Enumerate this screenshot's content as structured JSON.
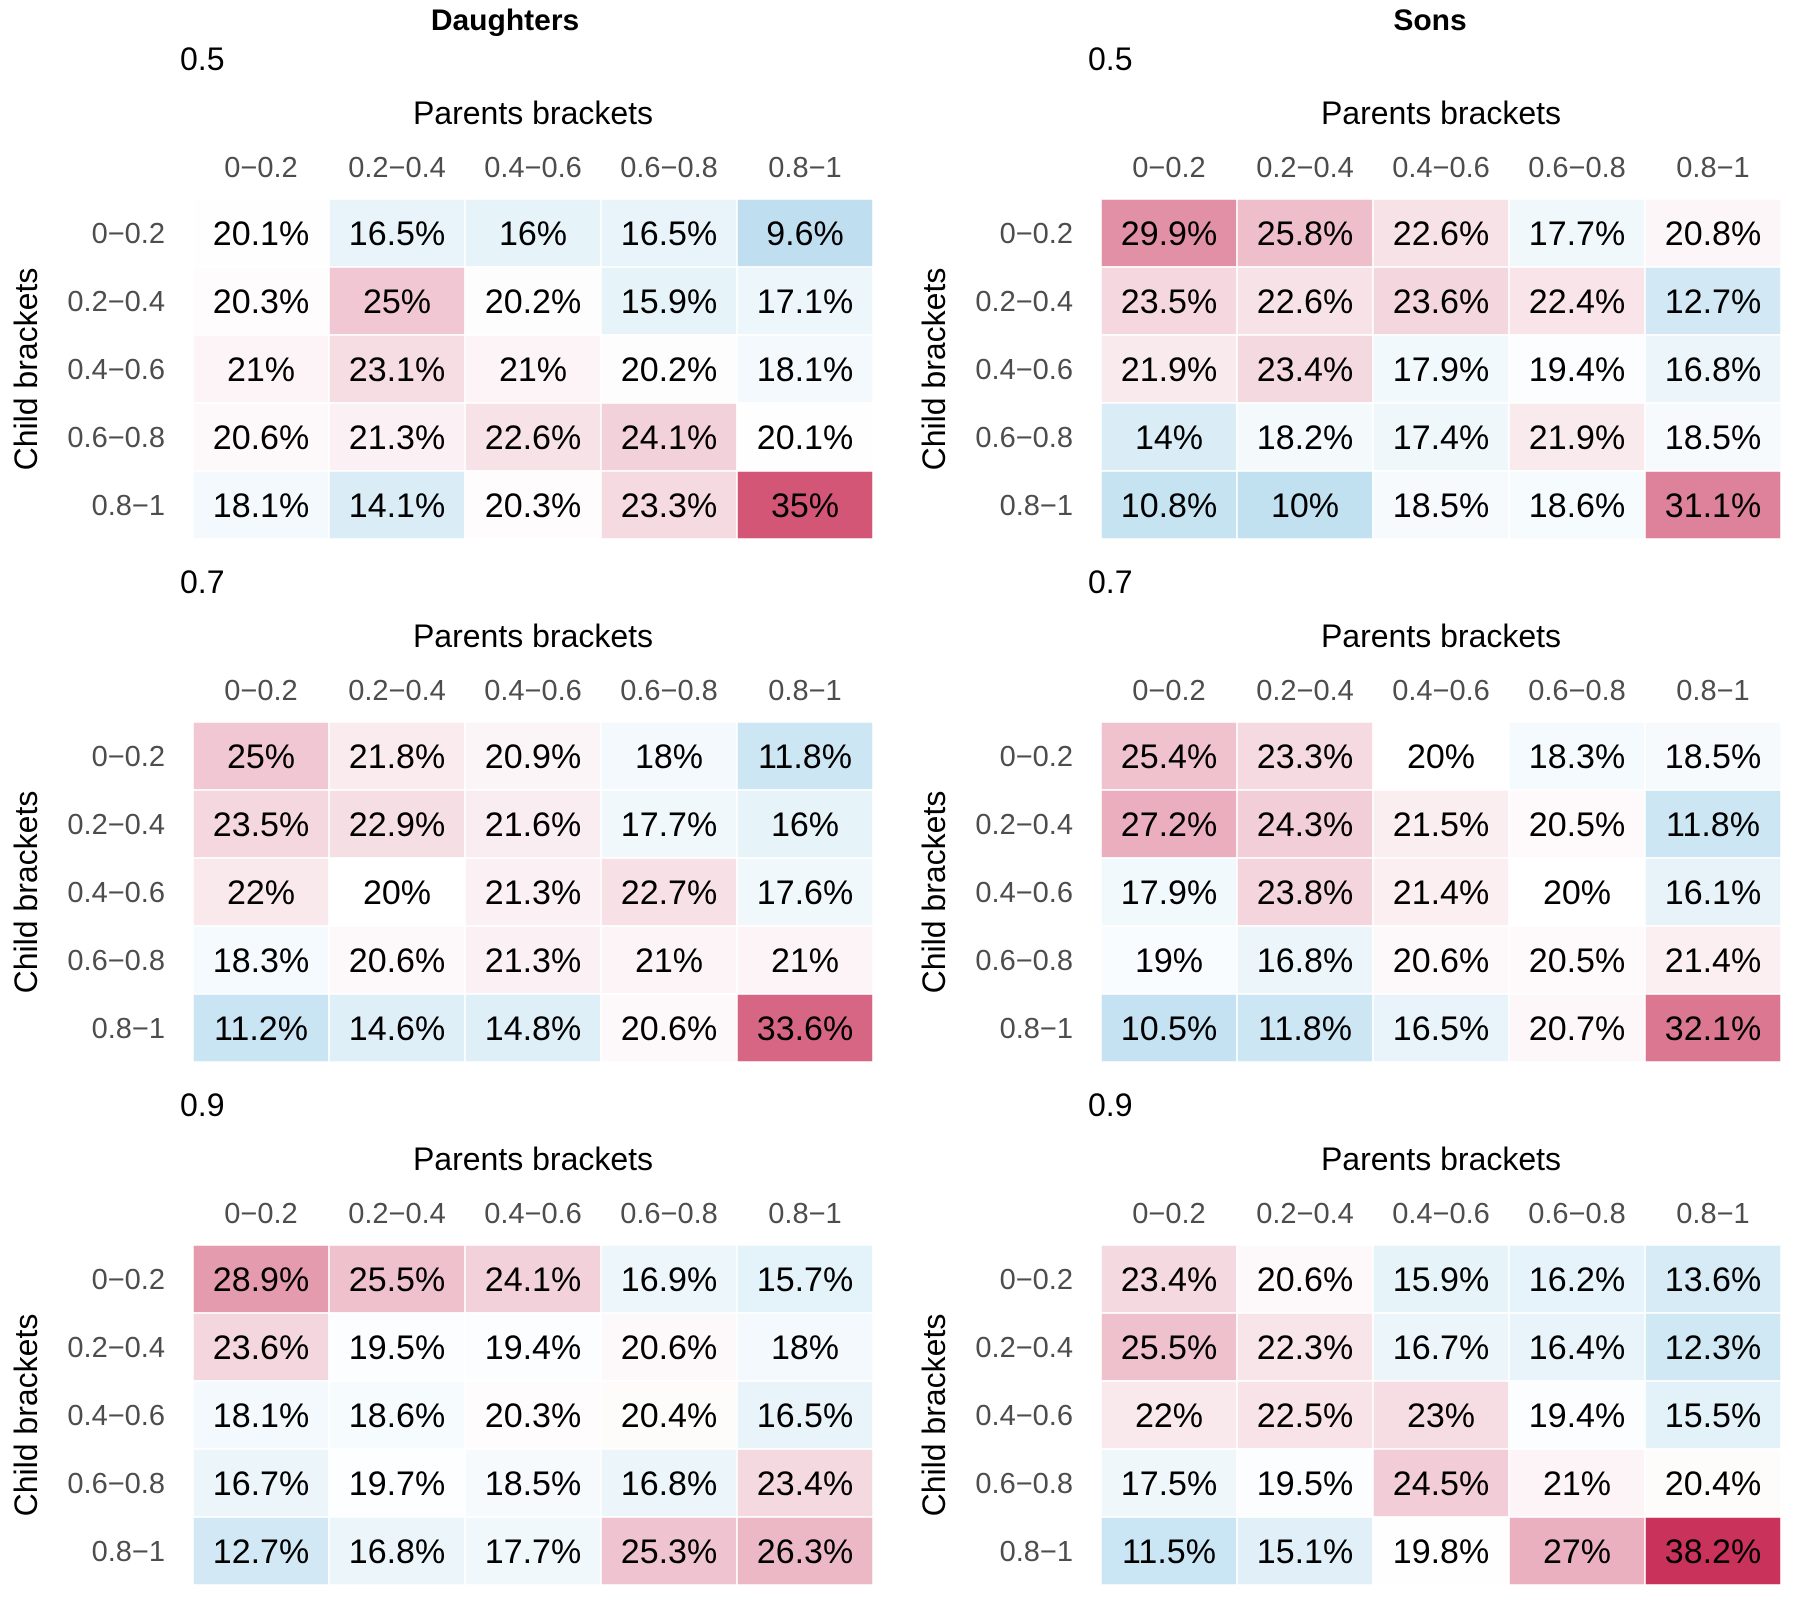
{
  "chart_data": {
    "type": "heatmap",
    "column_titles": [
      "Daughters",
      "Sons"
    ],
    "xlabel": "Parents brackets",
    "ylabel": "Child brackets",
    "categories": [
      "0−0.2",
      "0.2−0.4",
      "0.4−0.6",
      "0.6−0.8",
      "0.8−1"
    ],
    "value_suffix": "%",
    "color_scale": {
      "low": "#bedff0",
      "mid": "#ffffff",
      "high": "#c41e4a",
      "low_value": 9.5,
      "mid_value": 20,
      "high_value": 40
    },
    "panels": [
      {
        "column": "Daughters",
        "subtitle": "0.5",
        "values": [
          [
            "20.1",
            "16.5",
            "16",
            "16.5",
            "9.6"
          ],
          [
            "20.3",
            "25",
            "20.2",
            "15.9",
            "17.1"
          ],
          [
            "21",
            "23.1",
            "21",
            "20.2",
            "18.1"
          ],
          [
            "20.6",
            "21.3",
            "22.6",
            "24.1",
            "20.1"
          ],
          [
            "18.1",
            "14.1",
            "20.3",
            "23.3",
            "35"
          ]
        ]
      },
      {
        "column": "Sons",
        "subtitle": "0.5",
        "values": [
          [
            "29.9",
            "25.8",
            "22.6",
            "17.7",
            "20.8"
          ],
          [
            "23.5",
            "22.6",
            "23.6",
            "22.4",
            "12.7"
          ],
          [
            "21.9",
            "23.4",
            "17.9",
            "19.4",
            "16.8"
          ],
          [
            "14",
            "18.2",
            "17.4",
            "21.9",
            "18.5"
          ],
          [
            "10.8",
            "10",
            "18.5",
            "18.6",
            "31.1"
          ]
        ]
      },
      {
        "column": "Daughters",
        "subtitle": "0.7",
        "values": [
          [
            "25",
            "21.8",
            "20.9",
            "18",
            "11.8"
          ],
          [
            "23.5",
            "22.9",
            "21.6",
            "17.7",
            "16"
          ],
          [
            "22",
            "20",
            "21.3",
            "22.7",
            "17.6"
          ],
          [
            "18.3",
            "20.6",
            "21.3",
            "21",
            "21"
          ],
          [
            "11.2",
            "14.6",
            "14.8",
            "20.6",
            "33.6"
          ]
        ]
      },
      {
        "column": "Sons",
        "subtitle": "0.7",
        "values": [
          [
            "25.4",
            "23.3",
            "20",
            "18.3",
            "18.5"
          ],
          [
            "27.2",
            "24.3",
            "21.5",
            "20.5",
            "11.8"
          ],
          [
            "17.9",
            "23.8",
            "21.4",
            "20",
            "16.1"
          ],
          [
            "19",
            "16.8",
            "20.6",
            "20.5",
            "21.4"
          ],
          [
            "10.5",
            "11.8",
            "16.5",
            "20.7",
            "32.1"
          ]
        ]
      },
      {
        "column": "Daughters",
        "subtitle": "0.9",
        "values": [
          [
            "28.9",
            "25.5",
            "24.1",
            "16.9",
            "15.7"
          ],
          [
            "23.6",
            "19.5",
            "19.4",
            "20.6",
            "18"
          ],
          [
            "18.1",
            "18.6",
            "20.3",
            "20.4",
            "16.5"
          ],
          [
            "16.7",
            "19.7",
            "18.5",
            "16.8",
            "23.4"
          ],
          [
            "12.7",
            "16.8",
            "17.7",
            "25.3",
            "26.3"
          ]
        ]
      },
      {
        "column": "Sons",
        "subtitle": "0.9",
        "values": [
          [
            "23.4",
            "20.6",
            "15.9",
            "16.2",
            "13.6"
          ],
          [
            "25.5",
            "22.3",
            "16.7",
            "16.4",
            "12.3"
          ],
          [
            "22",
            "22.5",
            "23",
            "19.4",
            "15.5"
          ],
          [
            "17.5",
            "19.5",
            "24.5",
            "21",
            "20.4"
          ],
          [
            "11.5",
            "15.1",
            "19.8",
            "27",
            "38.2"
          ]
        ]
      }
    ]
  }
}
